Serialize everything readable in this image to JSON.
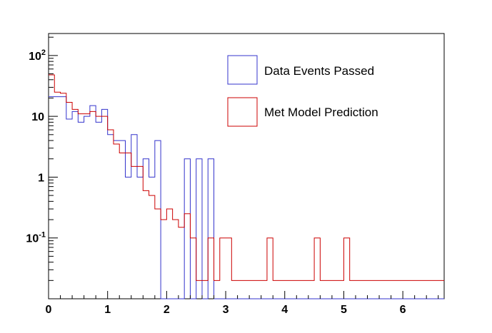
{
  "chart_data": {
    "type": "histogram",
    "y_scale": "log",
    "ylim": [
      0.01,
      230
    ],
    "xlim": [
      0,
      6.7
    ],
    "bin_width": 0.1,
    "x_bin_edges_start": 0,
    "x_ticks": [
      "0",
      "1",
      "2",
      "3",
      "4",
      "5",
      "6"
    ],
    "x_tick_values": [
      0,
      1,
      2,
      3,
      4,
      5,
      6
    ],
    "y_ticks": [
      {
        "value": 0.1,
        "base": "10",
        "exp": "-1"
      },
      {
        "value": 1,
        "base": "1",
        "exp": ""
      },
      {
        "value": 10,
        "base": "10",
        "exp": ""
      },
      {
        "value": 100,
        "base": "10",
        "exp": "2"
      }
    ],
    "grid": false,
    "legend_position": "top-right",
    "series": [
      {
        "name": "Data Events Passed",
        "color": "#3333cc",
        "values": [
          21,
          21,
          21,
          9,
          12,
          8,
          10,
          15,
          8,
          13,
          5,
          4,
          4,
          1,
          5,
          1,
          2,
          1,
          4,
          0,
          0,
          0,
          0,
          2,
          0,
          2,
          0,
          2,
          0,
          0,
          0,
          0,
          0,
          0,
          0,
          0,
          0,
          0,
          0,
          0,
          0,
          0,
          0,
          0,
          0,
          0,
          0,
          0,
          0,
          0,
          0,
          0,
          0,
          0,
          0,
          0,
          0,
          0,
          0,
          0,
          0,
          0,
          0,
          0,
          0,
          0,
          0
        ]
      },
      {
        "name": "Met Model Prediction",
        "color": "#cc0000",
        "values": [
          48,
          25,
          24,
          17,
          13,
          11,
          11,
          12,
          10,
          10,
          6,
          3.5,
          2.5,
          2.5,
          1.5,
          1.5,
          0.6,
          0.5,
          0.3,
          0.2,
          0.3,
          0.2,
          0.15,
          0.25,
          0.1,
          0.02,
          0.02,
          0.1,
          0.02,
          0.1,
          0.1,
          0.02,
          0.02,
          0.02,
          0.02,
          0.02,
          0.02,
          0.1,
          0.02,
          0.02,
          0.02,
          0.02,
          0.02,
          0.02,
          0.02,
          0.1,
          0.02,
          0.02,
          0.02,
          0.02,
          0.1,
          0.02,
          0.02,
          0.02,
          0.02,
          0.02,
          0.02,
          0.02,
          0.02,
          0.02,
          0.02,
          0.02,
          0.02,
          0.02,
          0.02,
          0.02,
          0.02
        ]
      }
    ]
  }
}
